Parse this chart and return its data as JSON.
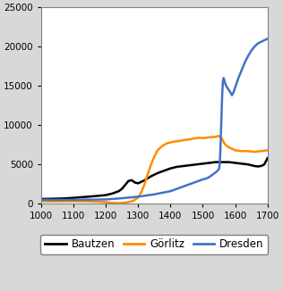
{
  "title": "",
  "xlabel": "",
  "ylabel": "",
  "xlim": [
    1000,
    1700
  ],
  "ylim": [
    0,
    25000
  ],
  "xticks": [
    1000,
    1100,
    1200,
    1300,
    1400,
    1500,
    1600,
    1700
  ],
  "yticks": [
    0,
    5000,
    10000,
    15000,
    20000,
    25000
  ],
  "background_color": "#d8d8d8",
  "plot_bg_color": "#ffffff",
  "series": {
    "Bautzen": {
      "color": "#000000",
      "linewidth": 1.8,
      "data": [
        [
          1000,
          600
        ],
        [
          1020,
          620
        ],
        [
          1040,
          640
        ],
        [
          1060,
          660
        ],
        [
          1080,
          700
        ],
        [
          1100,
          750
        ],
        [
          1120,
          820
        ],
        [
          1140,
          880
        ],
        [
          1160,
          950
        ],
        [
          1180,
          1020
        ],
        [
          1200,
          1100
        ],
        [
          1220,
          1300
        ],
        [
          1240,
          1600
        ],
        [
          1250,
          1900
        ],
        [
          1260,
          2400
        ],
        [
          1270,
          2900
        ],
        [
          1280,
          3000
        ],
        [
          1290,
          2700
        ],
        [
          1300,
          2600
        ],
        [
          1320,
          3000
        ],
        [
          1340,
          3500
        ],
        [
          1360,
          3900
        ],
        [
          1380,
          4200
        ],
        [
          1400,
          4500
        ],
        [
          1420,
          4700
        ],
        [
          1440,
          4800
        ],
        [
          1460,
          4900
        ],
        [
          1480,
          5000
        ],
        [
          1500,
          5100
        ],
        [
          1520,
          5200
        ],
        [
          1540,
          5300
        ],
        [
          1550,
          5300
        ],
        [
          1560,
          5300
        ],
        [
          1570,
          5300
        ],
        [
          1580,
          5300
        ],
        [
          1590,
          5250
        ],
        [
          1600,
          5200
        ],
        [
          1610,
          5150
        ],
        [
          1620,
          5100
        ],
        [
          1630,
          5050
        ],
        [
          1640,
          5000
        ],
        [
          1650,
          4900
        ],
        [
          1660,
          4800
        ],
        [
          1670,
          4750
        ],
        [
          1680,
          4800
        ],
        [
          1690,
          5000
        ],
        [
          1700,
          5800
        ]
      ]
    },
    "Görlitz": {
      "color": "#ff8c00",
      "linewidth": 1.8,
      "data": [
        [
          1000,
          300
        ],
        [
          1050,
          300
        ],
        [
          1100,
          320
        ],
        [
          1150,
          300
        ],
        [
          1180,
          250
        ],
        [
          1200,
          200
        ],
        [
          1210,
          150
        ],
        [
          1220,
          100
        ],
        [
          1240,
          80
        ],
        [
          1250,
          100
        ],
        [
          1260,
          150
        ],
        [
          1280,
          300
        ],
        [
          1290,
          500
        ],
        [
          1300,
          800
        ],
        [
          1310,
          1500
        ],
        [
          1320,
          2500
        ],
        [
          1330,
          3800
        ],
        [
          1340,
          5000
        ],
        [
          1350,
          6000
        ],
        [
          1360,
          6800
        ],
        [
          1370,
          7200
        ],
        [
          1380,
          7500
        ],
        [
          1390,
          7700
        ],
        [
          1400,
          7800
        ],
        [
          1410,
          7900
        ],
        [
          1420,
          7950
        ],
        [
          1430,
          8000
        ],
        [
          1440,
          8100
        ],
        [
          1450,
          8150
        ],
        [
          1460,
          8200
        ],
        [
          1470,
          8300
        ],
        [
          1480,
          8350
        ],
        [
          1490,
          8400
        ],
        [
          1500,
          8350
        ],
        [
          1510,
          8400
        ],
        [
          1520,
          8450
        ],
        [
          1530,
          8500
        ],
        [
          1540,
          8500
        ],
        [
          1545,
          8600
        ],
        [
          1550,
          8600
        ],
        [
          1555,
          8500
        ],
        [
          1560,
          8200
        ],
        [
          1565,
          7800
        ],
        [
          1570,
          7500
        ],
        [
          1580,
          7200
        ],
        [
          1590,
          7000
        ],
        [
          1600,
          6800
        ],
        [
          1620,
          6700
        ],
        [
          1640,
          6700
        ],
        [
          1660,
          6600
        ],
        [
          1680,
          6700
        ],
        [
          1700,
          6800
        ]
      ]
    },
    "Dresden": {
      "color": "#4472c4",
      "linewidth": 1.8,
      "data": [
        [
          1000,
          500
        ],
        [
          1050,
          500
        ],
        [
          1100,
          500
        ],
        [
          1150,
          520
        ],
        [
          1200,
          550
        ],
        [
          1250,
          700
        ],
        [
          1300,
          900
        ],
        [
          1350,
          1200
        ],
        [
          1400,
          1600
        ],
        [
          1420,
          1900
        ],
        [
          1440,
          2200
        ],
        [
          1460,
          2500
        ],
        [
          1480,
          2800
        ],
        [
          1500,
          3100
        ],
        [
          1510,
          3200
        ],
        [
          1520,
          3400
        ],
        [
          1530,
          3700
        ],
        [
          1540,
          4000
        ],
        [
          1545,
          4200
        ],
        [
          1550,
          4400
        ],
        [
          1552,
          5000
        ],
        [
          1554,
          6500
        ],
        [
          1556,
          9000
        ],
        [
          1558,
          11500
        ],
        [
          1560,
          14000
        ],
        [
          1562,
          15500
        ],
        [
          1564,
          16000
        ],
        [
          1566,
          15800
        ],
        [
          1568,
          15500
        ],
        [
          1570,
          15200
        ],
        [
          1575,
          14800
        ],
        [
          1580,
          14500
        ],
        [
          1585,
          14200
        ],
        [
          1590,
          13800
        ],
        [
          1595,
          14200
        ],
        [
          1600,
          14800
        ],
        [
          1610,
          16000
        ],
        [
          1620,
          17000
        ],
        [
          1630,
          18000
        ],
        [
          1640,
          18800
        ],
        [
          1650,
          19500
        ],
        [
          1660,
          20000
        ],
        [
          1670,
          20400
        ],
        [
          1680,
          20600
        ],
        [
          1690,
          20800
        ],
        [
          1700,
          21000
        ]
      ]
    }
  },
  "legend": {
    "labels": [
      "Bautzen",
      "Görlitz",
      "Dresden"
    ],
    "colors": [
      "#000000",
      "#ff8c00",
      "#4472c4"
    ],
    "ncol": 3,
    "fontsize": 8.5
  },
  "tick_fontsize": 7.5,
  "border_color": "#a0a0a0",
  "spine_color": "#808080"
}
